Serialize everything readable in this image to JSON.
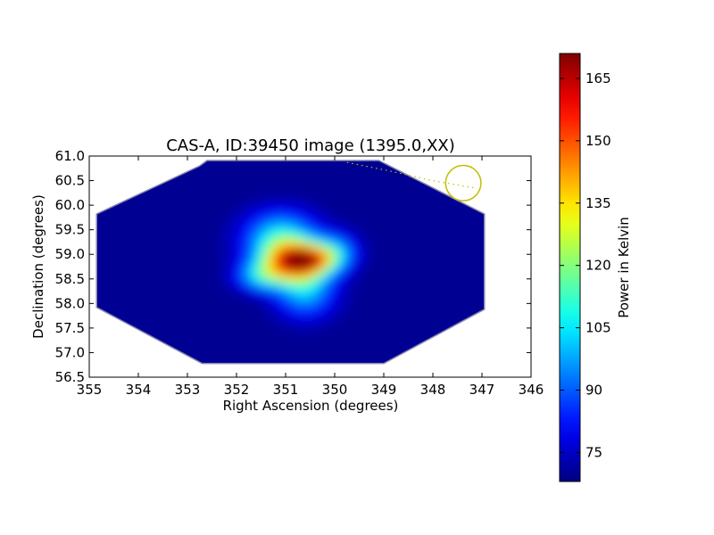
{
  "chart_data": {
    "type": "heatmap",
    "title": "CAS-A, ID:39450 image (1395.0,XX)",
    "xlabel": "Right Ascension (degrees)",
    "ylabel": "Declination (degrees)",
    "xlim": [
      355,
      346
    ],
    "ylim": [
      56.5,
      61.0
    ],
    "x_ticks": [
      "355",
      "354",
      "353",
      "352",
      "351",
      "350",
      "349",
      "348",
      "347",
      "346"
    ],
    "y_ticks": [
      "56.5",
      "57.0",
      "57.5",
      "58.0",
      "58.5",
      "59.0",
      "59.5",
      "60.0",
      "60.5",
      "61.0"
    ],
    "grid": false,
    "colormap": "jet",
    "colorbar": {
      "label": "Power in Kelvin",
      "range": [
        68,
        171
      ],
      "ticks": [
        "75",
        "90",
        "105",
        "120",
        "135",
        "150",
        "165"
      ]
    },
    "footprint_polygon": [
      [
        354.85,
        59.82
      ],
      [
        352.75,
        60.8
      ],
      [
        352.6,
        60.91
      ],
      [
        349.1,
        60.91
      ],
      [
        346.95,
        59.82
      ],
      [
        346.95,
        57.88
      ],
      [
        349.0,
        56.78
      ],
      [
        352.7,
        56.78
      ],
      [
        354.85,
        57.92
      ]
    ],
    "background_value": 70,
    "emission_components": [
      {
        "ra": 350.85,
        "dec": 58.85,
        "sigma_ra": 0.45,
        "sigma_dec": 0.28,
        "peak": 72
      },
      {
        "ra": 350.45,
        "dec": 58.9,
        "sigma_ra": 0.35,
        "sigma_dec": 0.2,
        "peak": 40
      },
      {
        "ra": 351.1,
        "dec": 59.35,
        "sigma_ra": 0.5,
        "sigma_dec": 0.35,
        "peak": 35
      },
      {
        "ra": 350.6,
        "dec": 58.25,
        "sigma_ra": 0.4,
        "sigma_dec": 0.35,
        "peak": 30
      },
      {
        "ra": 351.5,
        "dec": 58.55,
        "sigma_ra": 0.35,
        "sigma_dec": 0.2,
        "peak": 28
      },
      {
        "ra": 349.95,
        "dec": 59.05,
        "sigma_ra": 0.3,
        "sigma_dec": 0.25,
        "peak": 22
      }
    ],
    "beam_circle": {
      "ra": 347.38,
      "dec": 60.45,
      "radius_deg": 0.36
    },
    "dotted_track": [
      [
        349.75,
        60.87
      ],
      [
        348.9,
        60.7
      ],
      [
        348.0,
        60.5
      ],
      [
        347.15,
        60.35
      ]
    ]
  }
}
